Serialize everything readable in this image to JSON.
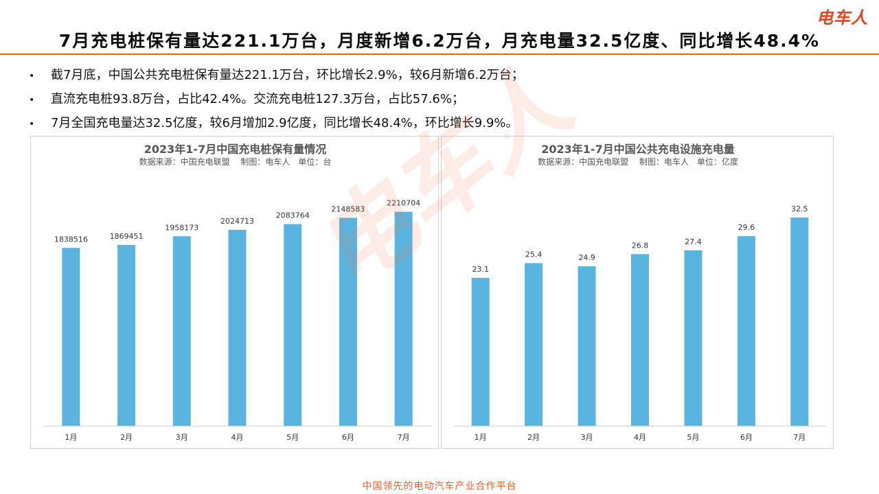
{
  "brand": {
    "logo_text": "电车人",
    "accent": "#e8602c"
  },
  "headline": "7月充电桩保有量达221.1万台，月度新增6.2万台，月充电量32.5亿度、同比增长48.4%",
  "bullets": [
    "截7月底，中国公共充电桩保有量达221.1万台，环比增长2.9%，较6月新增6.2万台；",
    "直流充电桩93.8万台，占比42.4%。交流充电桩127.3万台，占比57.6%；",
    "7月全国充电量达32.5亿度，较6月增加2.9亿度，同比增长48.4%，环比增长9.9%。"
  ],
  "bullet_marker": "•",
  "watermark": "电车人",
  "watermark_mark": "®",
  "footer": "中国领先的电动汽车产业合作平台",
  "chart_data": [
    {
      "type": "bar",
      "title": "2023年1-7月中国充电桩保有量情况",
      "subtitle": "数据来源：中国充电联盟　 制图：电车人　单位：台",
      "categories": [
        "1月",
        "2月",
        "3月",
        "4月",
        "5月",
        "6月",
        "7月"
      ],
      "values": [
        1838516,
        1869451,
        1958173,
        2024713,
        2083764,
        2148583,
        2210704
      ],
      "ylim": [
        0,
        2350000
      ],
      "bar_color": "#5ab4e0",
      "grid": false,
      "data_labels": true
    },
    {
      "type": "bar",
      "title": "2023年1-7月中国公共充电设施充电量",
      "subtitle": "数据来源：中国充电联盟　 制图：电车人　单位：亿度",
      "categories": [
        "1月",
        "2月",
        "3月",
        "4月",
        "5月",
        "6月",
        "7月"
      ],
      "values": [
        23.1,
        25.4,
        24.9,
        26.8,
        27.4,
        29.6,
        32.5
      ],
      "ylim": [
        0,
        35.5
      ],
      "bar_color": "#5ab4e0",
      "grid": false,
      "data_labels": true
    }
  ]
}
